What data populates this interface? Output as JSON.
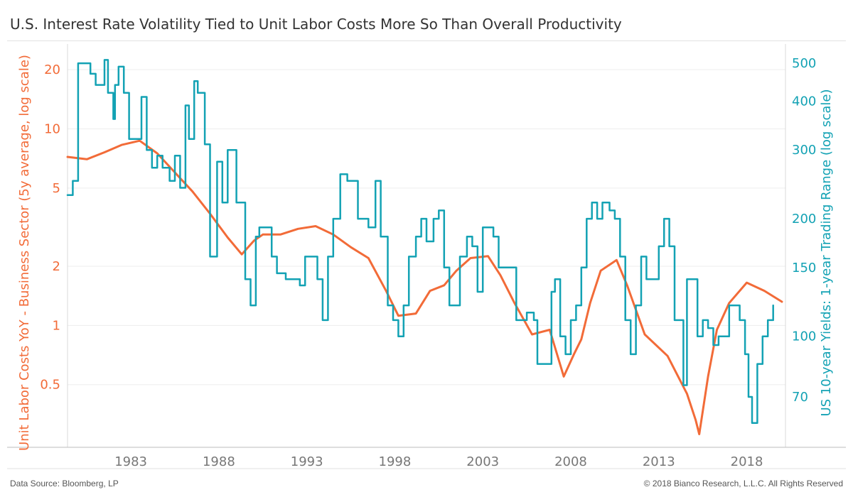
{
  "page": {
    "title": "U.S. Interest Rate Volatility Tied to Unit Labor Costs More So Than Overall Productivity",
    "source": "Data Source: Bloomberg, LP",
    "copyright": "© 2018 Bianco Research, L.L.C. All Rights Reserved"
  },
  "colors": {
    "orange": "#f26b38",
    "teal": "#13a2b4",
    "grid": "#ededed",
    "axis_text": "#777777"
  },
  "chart_data": {
    "type": "line",
    "title": "U.S. Interest Rate Volatility Tied to Unit Labor Costs More So Than Overall Productivity",
    "xlabel": "",
    "x_ticks": [
      1983,
      1988,
      1993,
      1998,
      2003,
      2008,
      2013,
      2018
    ],
    "xlim": [
      1979.4,
      2020.2
    ],
    "grid": true,
    "left_axis": {
      "label": "Unit Labor Costs YoY - Business Sector (5y average, log scale)",
      "scale": "log",
      "ylim": [
        0.24,
        27
      ],
      "ticks": [
        0.5,
        1,
        2,
        5,
        10,
        20
      ],
      "tick_labels": [
        "0.5",
        "1",
        "2",
        "5",
        "10",
        "20"
      ]
    },
    "right_axis": {
      "label": "US 10-year Yields: 1-year Trading Range (log scale)",
      "scale": "log",
      "ylim": [
        52,
        560
      ],
      "ticks": [
        70,
        100,
        150,
        200,
        300,
        400,
        500
      ],
      "tick_labels": [
        "70",
        "100",
        "150",
        "200",
        "300",
        "400",
        "500"
      ]
    },
    "series": [
      {
        "name": "Unit Labor Costs YoY - Business Sector (5y average, log scale)",
        "axis": "left",
        "points": [
          [
            1979.4,
            7.2
          ],
          [
            1980.5,
            7.0
          ],
          [
            1981.5,
            7.6
          ],
          [
            1982.5,
            8.3
          ],
          [
            1983.5,
            8.7
          ],
          [
            1984.5,
            7.5
          ],
          [
            1985.5,
            6.0
          ],
          [
            1986.5,
            4.8
          ],
          [
            1987.5,
            3.7
          ],
          [
            1988.5,
            2.8
          ],
          [
            1989.3,
            2.3
          ],
          [
            1990.0,
            2.7
          ],
          [
            1990.5,
            2.9
          ],
          [
            1991.5,
            2.9
          ],
          [
            1992.5,
            3.1
          ],
          [
            1993.5,
            3.2
          ],
          [
            1994.5,
            2.9
          ],
          [
            1995.5,
            2.5
          ],
          [
            1996.5,
            2.2
          ],
          [
            1997.5,
            1.5
          ],
          [
            1998.2,
            1.12
          ],
          [
            1999.2,
            1.15
          ],
          [
            2000.0,
            1.5
          ],
          [
            2000.8,
            1.6
          ],
          [
            2001.5,
            1.9
          ],
          [
            2002.3,
            2.2
          ],
          [
            2003.3,
            2.25
          ],
          [
            2004.0,
            1.8
          ],
          [
            2004.8,
            1.3
          ],
          [
            2005.8,
            0.9
          ],
          [
            2006.8,
            0.95
          ],
          [
            2007.6,
            0.55
          ],
          [
            2008.2,
            0.72
          ],
          [
            2008.6,
            0.85
          ],
          [
            2009.1,
            1.3
          ],
          [
            2009.7,
            1.9
          ],
          [
            2010.6,
            2.15
          ],
          [
            2011.2,
            1.6
          ],
          [
            2012.2,
            0.9
          ],
          [
            2013.5,
            0.7
          ],
          [
            2014.6,
            0.45
          ],
          [
            2015.1,
            0.33
          ],
          [
            2015.3,
            0.28
          ],
          [
            2015.8,
            0.55
          ],
          [
            2016.3,
            0.95
          ],
          [
            2017.0,
            1.3
          ],
          [
            2018.0,
            1.65
          ],
          [
            2019.0,
            1.5
          ],
          [
            2020.0,
            1.32
          ]
        ]
      },
      {
        "name": "US 10-year Yields: 1-year Trading Range (log scale)",
        "axis": "right",
        "points": [
          [
            1979.4,
            230
          ],
          [
            1979.7,
            250
          ],
          [
            1980.0,
            500
          ],
          [
            1980.4,
            500
          ],
          [
            1980.7,
            470
          ],
          [
            1981.0,
            440
          ],
          [
            1981.3,
            440
          ],
          [
            1981.5,
            510
          ],
          [
            1981.7,
            420
          ],
          [
            1982.0,
            360
          ],
          [
            1982.1,
            440
          ],
          [
            1982.3,
            490
          ],
          [
            1982.6,
            420
          ],
          [
            1982.9,
            320
          ],
          [
            1983.3,
            320
          ],
          [
            1983.6,
            410
          ],
          [
            1983.9,
            300
          ],
          [
            1984.2,
            270
          ],
          [
            1984.5,
            290
          ],
          [
            1984.8,
            270
          ],
          [
            1985.2,
            250
          ],
          [
            1985.5,
            290
          ],
          [
            1985.8,
            240
          ],
          [
            1986.1,
            390
          ],
          [
            1986.3,
            320
          ],
          [
            1986.6,
            450
          ],
          [
            1986.8,
            420
          ],
          [
            1987.2,
            310
          ],
          [
            1987.5,
            160
          ],
          [
            1987.9,
            280
          ],
          [
            1988.2,
            220
          ],
          [
            1988.5,
            300
          ],
          [
            1988.8,
            300
          ],
          [
            1989.0,
            220
          ],
          [
            1989.3,
            220
          ],
          [
            1989.5,
            140
          ],
          [
            1989.8,
            120
          ],
          [
            1990.1,
            180
          ],
          [
            1990.3,
            190
          ],
          [
            1990.7,
            190
          ],
          [
            1991.0,
            160
          ],
          [
            1991.3,
            145
          ],
          [
            1991.8,
            140
          ],
          [
            1992.2,
            140
          ],
          [
            1992.6,
            135
          ],
          [
            1992.9,
            160
          ],
          [
            1993.3,
            160
          ],
          [
            1993.6,
            140
          ],
          [
            1993.9,
            110
          ],
          [
            1994.2,
            160
          ],
          [
            1994.5,
            200
          ],
          [
            1994.9,
            260
          ],
          [
            1995.3,
            250
          ],
          [
            1995.6,
            250
          ],
          [
            1995.9,
            200
          ],
          [
            1996.2,
            200
          ],
          [
            1996.5,
            190
          ],
          [
            1996.9,
            250
          ],
          [
            1997.2,
            180
          ],
          [
            1997.6,
            120
          ],
          [
            1997.9,
            110
          ],
          [
            1998.2,
            100
          ],
          [
            1998.5,
            120
          ],
          [
            1998.8,
            160
          ],
          [
            1999.2,
            180
          ],
          [
            1999.5,
            200
          ],
          [
            1999.8,
            175
          ],
          [
            2000.2,
            200
          ],
          [
            2000.5,
            210
          ],
          [
            2000.8,
            150
          ],
          [
            2001.1,
            120
          ],
          [
            2001.4,
            120
          ],
          [
            2001.7,
            160
          ],
          [
            2002.1,
            180
          ],
          [
            2002.4,
            170
          ],
          [
            2002.7,
            130
          ],
          [
            2003.0,
            190
          ],
          [
            2003.3,
            190
          ],
          [
            2003.6,
            180
          ],
          [
            2003.9,
            150
          ],
          [
            2004.2,
            150
          ],
          [
            2004.5,
            150
          ],
          [
            2004.9,
            110
          ],
          [
            2005.2,
            110
          ],
          [
            2005.5,
            115
          ],
          [
            2005.9,
            110
          ],
          [
            2006.1,
            85
          ],
          [
            2006.5,
            85
          ],
          [
            2006.9,
            130
          ],
          [
            2007.1,
            140
          ],
          [
            2007.4,
            100
          ],
          [
            2007.7,
            90
          ],
          [
            2008.0,
            110
          ],
          [
            2008.3,
            120
          ],
          [
            2008.6,
            150
          ],
          [
            2008.9,
            200
          ],
          [
            2009.2,
            220
          ],
          [
            2009.5,
            200
          ],
          [
            2009.8,
            220
          ],
          [
            2010.2,
            210
          ],
          [
            2010.5,
            200
          ],
          [
            2010.8,
            160
          ],
          [
            2011.1,
            110
          ],
          [
            2011.4,
            90
          ],
          [
            2011.7,
            120
          ],
          [
            2012.0,
            160
          ],
          [
            2012.3,
            140
          ],
          [
            2012.7,
            140
          ],
          [
            2013.0,
            170
          ],
          [
            2013.3,
            200
          ],
          [
            2013.6,
            170
          ],
          [
            2013.9,
            110
          ],
          [
            2014.2,
            110
          ],
          [
            2014.4,
            75
          ],
          [
            2014.6,
            140
          ],
          [
            2014.9,
            140
          ],
          [
            2015.2,
            100
          ],
          [
            2015.5,
            110
          ],
          [
            2015.8,
            105
          ],
          [
            2016.1,
            95
          ],
          [
            2016.4,
            100
          ],
          [
            2016.7,
            100
          ],
          [
            2017.0,
            120
          ],
          [
            2017.3,
            120
          ],
          [
            2017.6,
            110
          ],
          [
            2017.9,
            90
          ],
          [
            2018.1,
            70
          ],
          [
            2018.3,
            60
          ],
          [
            2018.6,
            85
          ],
          [
            2018.9,
            100
          ],
          [
            2019.2,
            110
          ],
          [
            2019.5,
            120
          ]
        ]
      }
    ]
  }
}
